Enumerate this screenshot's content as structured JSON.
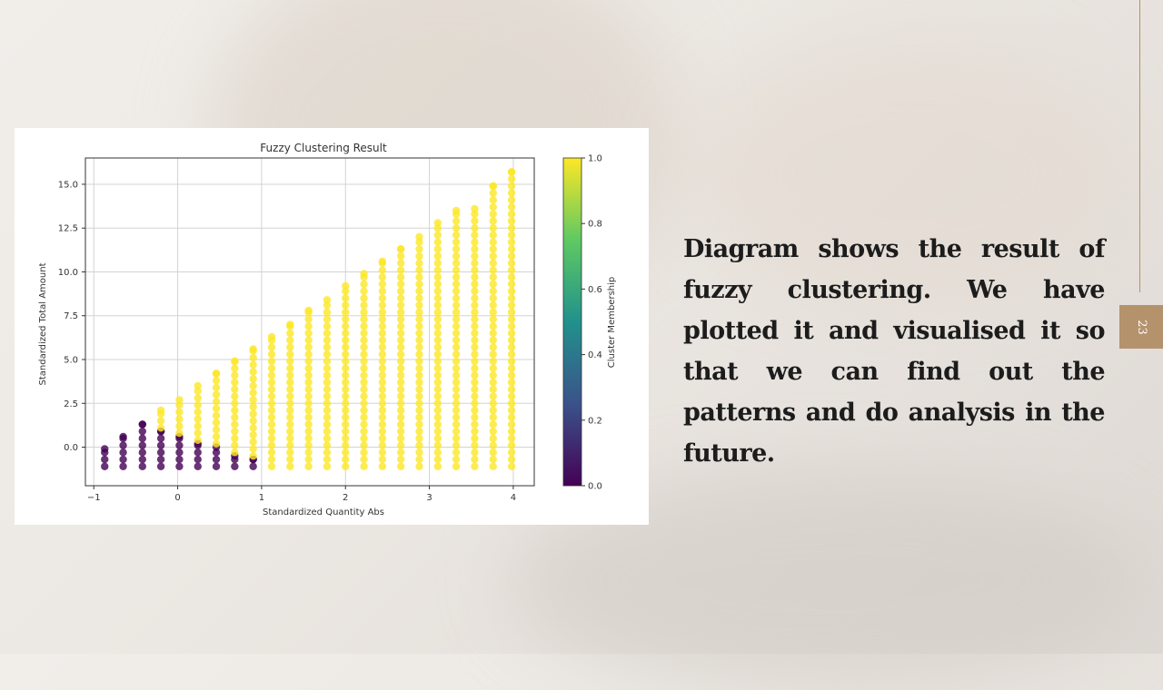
{
  "slide": {
    "text": "Diagram shows the result of fuzzy clustering. We have plotted it and visualised it so that we can find out the patterns and do analysis in the future.",
    "page_number": "23",
    "accent_color": "#b3926c"
  },
  "chart_data": {
    "type": "scatter",
    "title": "Fuzzy Clustering Result",
    "xlabel": "Standardized Quantity Abs",
    "ylabel": "Standardized Total Amount",
    "xlim": [
      -1.1,
      4.25
    ],
    "ylim": [
      -2.2,
      16.5
    ],
    "xticks": [
      "−1",
      "0",
      "1",
      "2",
      "3",
      "4"
    ],
    "yticks": [
      "0.0",
      "2.5",
      "5.0",
      "7.5",
      "10.0",
      "12.5",
      "15.0"
    ],
    "grid": true,
    "colormap": "viridis",
    "colorbar": {
      "label": "Cluster Membership",
      "range": [
        0.0,
        1.0
      ],
      "ticks": [
        "0.0",
        "0.2",
        "0.4",
        "0.6",
        "0.8",
        "1.0"
      ]
    },
    "columns": [
      {
        "x": -0.87,
        "ymin": -1.1,
        "ymax": -0.1,
        "membership": 0.0
      },
      {
        "x": -0.65,
        "ymin": -1.1,
        "ymax": 0.6,
        "membership": 0.0
      },
      {
        "x": -0.42,
        "ymin": -1.1,
        "ymax": 1.3,
        "membership": 0.0
      },
      {
        "x": -0.2,
        "ymin": -1.1,
        "ymax": 0.9,
        "membership": 0.0
      },
      {
        "x": -0.2,
        "ymin": 1.1,
        "ymax": 2.1,
        "membership": 1.0
      },
      {
        "x": 0.02,
        "ymin": -1.1,
        "ymax": 0.6,
        "membership": 0.0
      },
      {
        "x": 0.02,
        "ymin": 0.8,
        "ymax": 2.7,
        "membership": 1.0
      },
      {
        "x": 0.24,
        "ymin": -1.1,
        "ymax": 0.2,
        "membership": 0.0
      },
      {
        "x": 0.24,
        "ymin": 0.4,
        "ymax": 3.5,
        "membership": 1.0
      },
      {
        "x": 0.46,
        "ymin": -1.1,
        "ymax": 0.0,
        "membership": 0.0
      },
      {
        "x": 0.46,
        "ymin": 0.2,
        "ymax": 4.2,
        "membership": 1.0
      },
      {
        "x": 0.68,
        "ymin": -1.1,
        "ymax": -0.5,
        "membership": 0.0
      },
      {
        "x": 0.68,
        "ymin": -0.3,
        "ymax": 4.9,
        "membership": 1.0
      },
      {
        "x": 0.9,
        "ymin": -1.1,
        "ymax": -0.7,
        "membership": 0.0
      },
      {
        "x": 0.9,
        "ymin": -0.5,
        "ymax": 5.6,
        "membership": 1.0
      },
      {
        "x": 1.12,
        "ymin": -1.1,
        "ymax": 6.3,
        "membership": 1.0
      },
      {
        "x": 1.34,
        "ymin": -1.1,
        "ymax": 7.0,
        "membership": 1.0
      },
      {
        "x": 1.56,
        "ymin": -1.1,
        "ymax": 7.8,
        "membership": 1.0
      },
      {
        "x": 1.78,
        "ymin": -1.1,
        "ymax": 8.4,
        "membership": 1.0
      },
      {
        "x": 2.0,
        "ymin": -1.1,
        "ymax": 9.2,
        "membership": 1.0
      },
      {
        "x": 2.22,
        "ymin": -1.1,
        "ymax": 9.9,
        "membership": 1.0
      },
      {
        "x": 2.44,
        "ymin": -1.1,
        "ymax": 10.6,
        "membership": 1.0
      },
      {
        "x": 2.66,
        "ymin": -1.1,
        "ymax": 11.3,
        "membership": 1.0
      },
      {
        "x": 2.88,
        "ymin": -1.1,
        "ymax": 12.0,
        "membership": 1.0
      },
      {
        "x": 3.1,
        "ymin": -1.1,
        "ymax": 12.8,
        "membership": 1.0
      },
      {
        "x": 3.32,
        "ymin": -1.1,
        "ymax": 13.5,
        "membership": 1.0
      },
      {
        "x": 3.54,
        "ymin": -1.1,
        "ymax": 13.6,
        "membership": 1.0
      },
      {
        "x": 3.76,
        "ymin": -1.1,
        "ymax": 14.9,
        "membership": 1.0
      },
      {
        "x": 3.98,
        "ymin": -1.1,
        "ymax": 15.7,
        "membership": 1.0
      }
    ]
  }
}
